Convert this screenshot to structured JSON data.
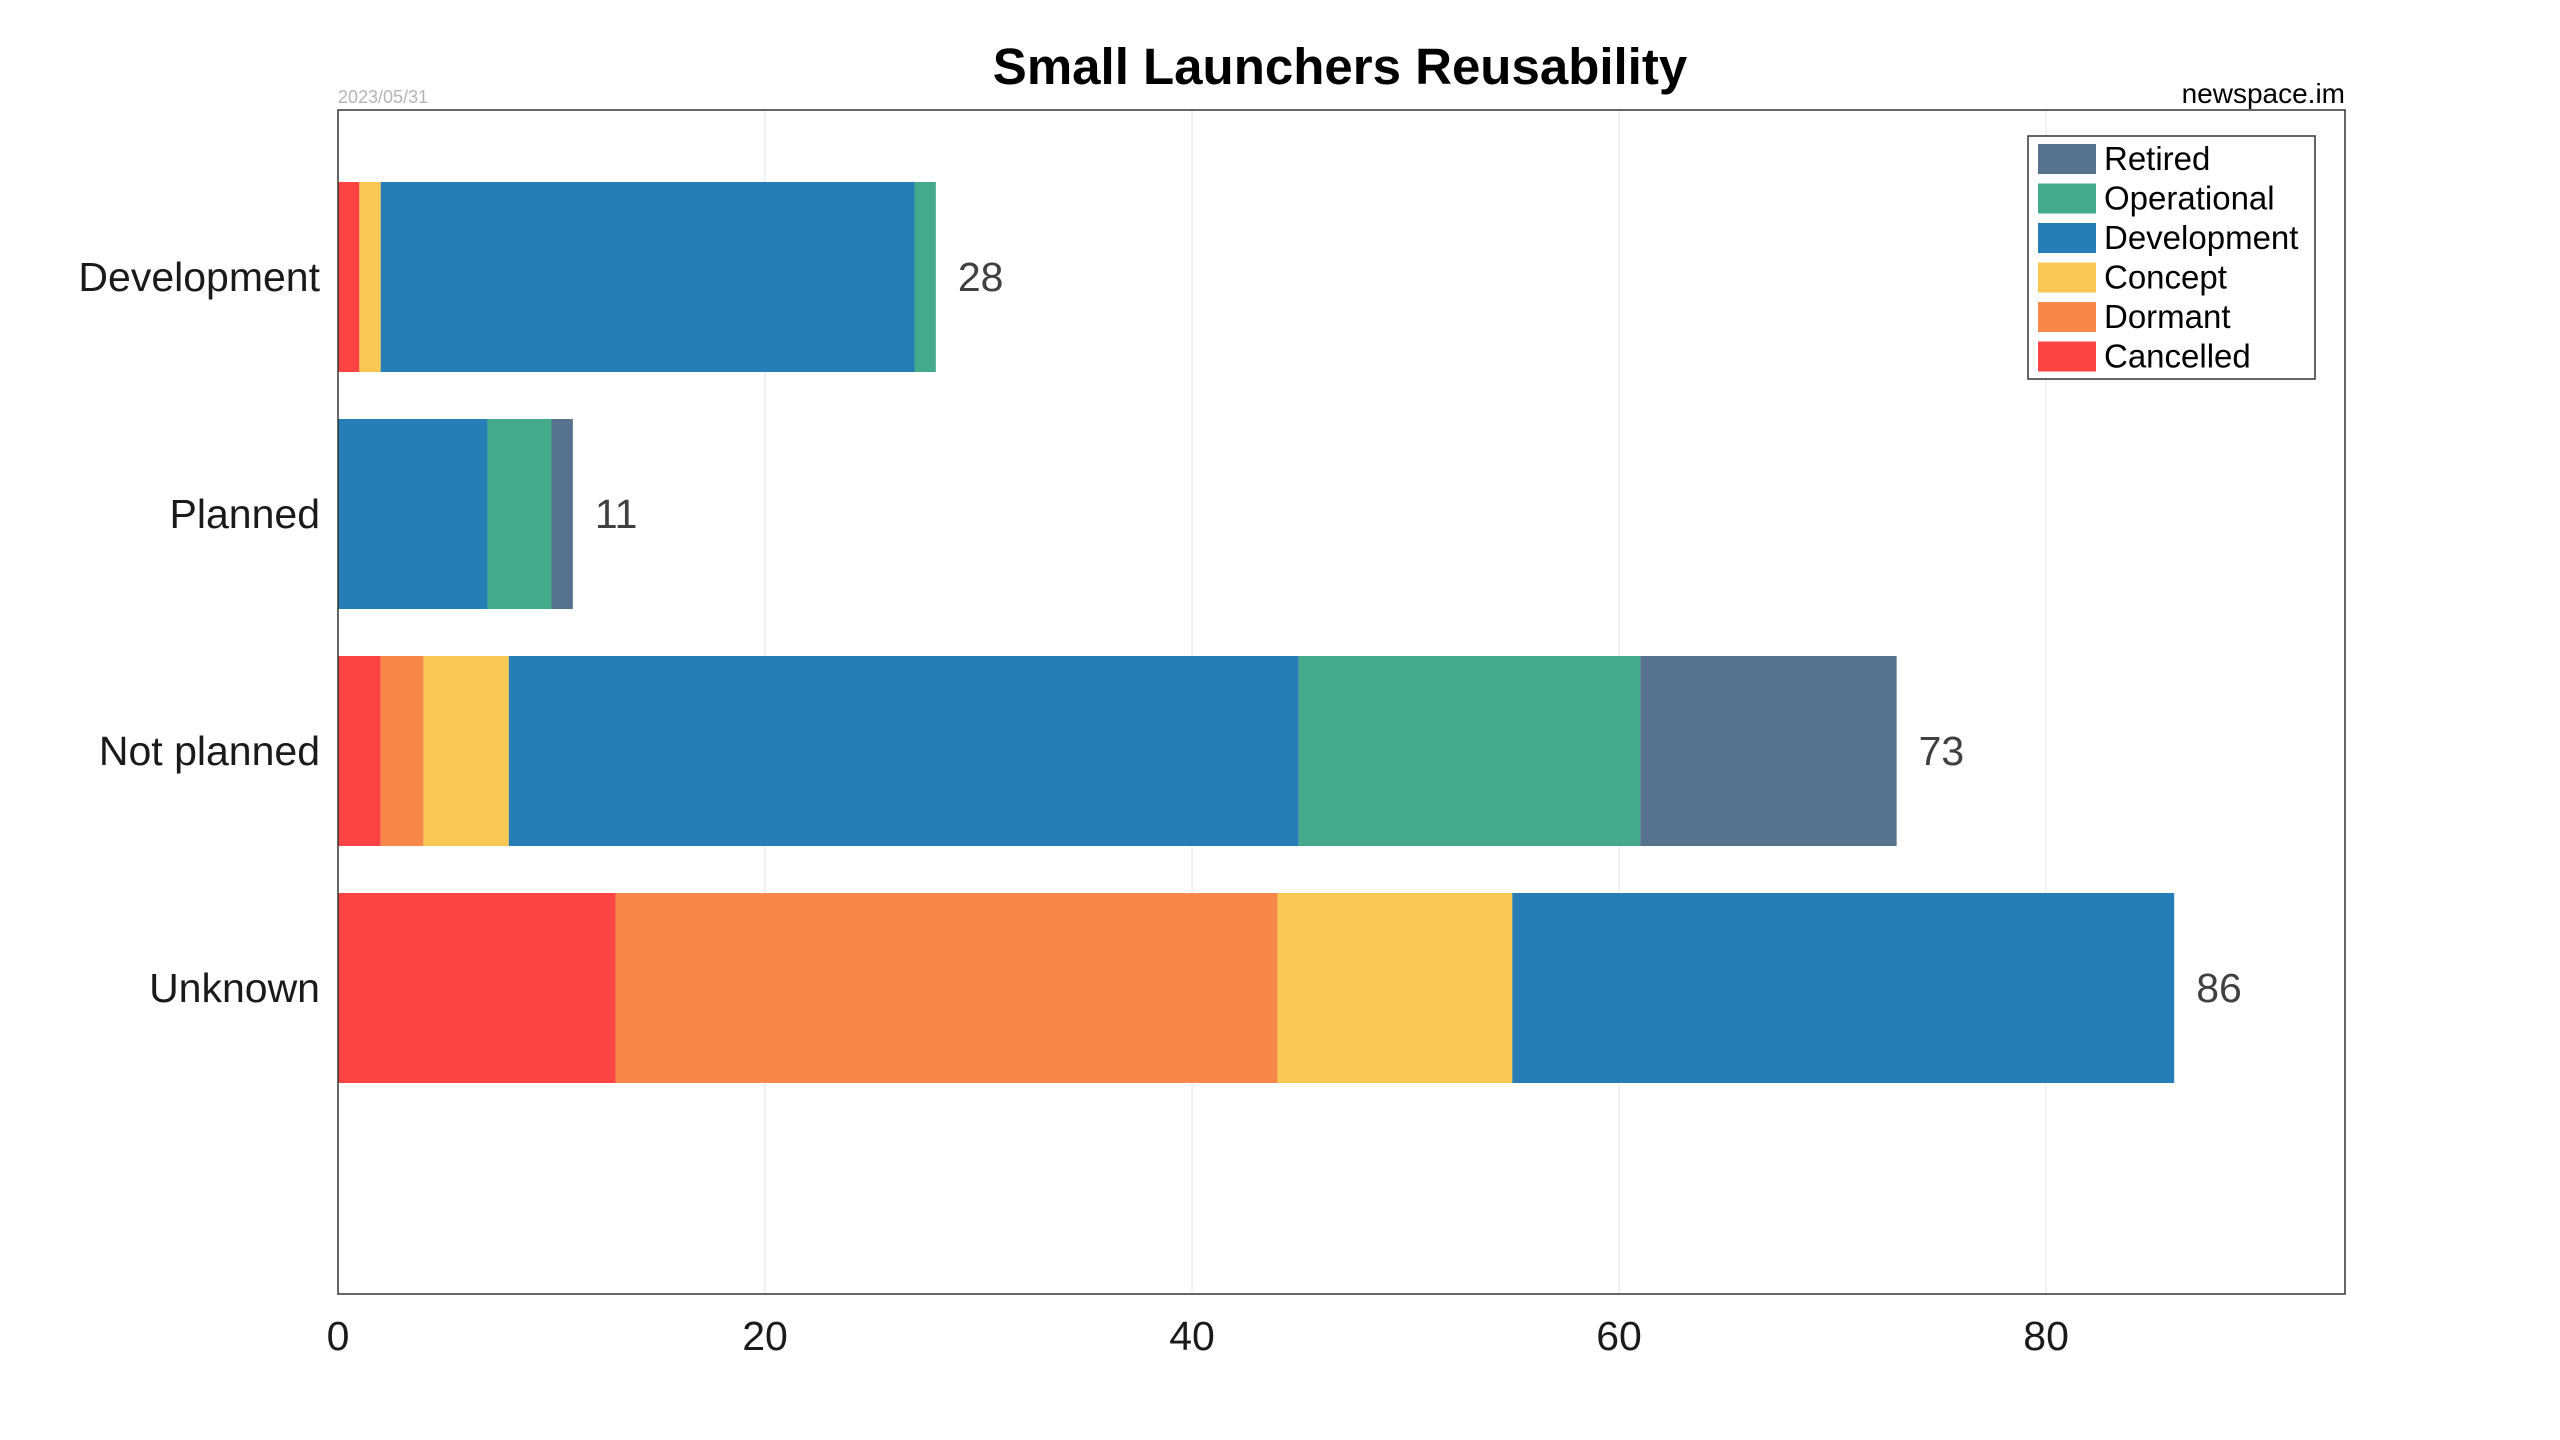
{
  "chart_data": {
    "type": "bar",
    "orientation": "horizontal",
    "stacked": true,
    "title": "Small Launchers Reusability",
    "date_note": "2023/05/31",
    "source_note": "newspace.im",
    "categories": [
      "Development",
      "Planned",
      "Not planned",
      "Unknown"
    ],
    "series": [
      {
        "name": "Cancelled",
        "color": "#fc4444",
        "values": [
          1,
          0,
          2,
          13
        ]
      },
      {
        "name": "Dormant",
        "color": "#f8874a",
        "values": [
          0,
          0,
          2,
          31
        ]
      },
      {
        "name": "Concept",
        "color": "#f9c754",
        "values": [
          1,
          0,
          4,
          11
        ]
      },
      {
        "name": "Development",
        "color": "#277db5",
        "values": [
          25,
          7,
          37,
          31
        ]
      },
      {
        "name": "Operational",
        "color": "#44aa8b",
        "values": [
          1,
          3,
          16,
          0
        ]
      },
      {
        "name": "Retired",
        "color": "#57728f",
        "values": [
          0,
          1,
          12,
          0
        ]
      }
    ],
    "totals": [
      "28",
      "11",
      "73",
      "86"
    ],
    "legend_order": [
      "Retired",
      "Operational",
      "Development",
      "Concept",
      "Dormant",
      "Cancelled"
    ],
    "xticks": [
      0,
      20,
      40,
      60,
      80
    ],
    "tick_labels": [
      "0",
      "20",
      "40",
      "60",
      "80"
    ],
    "xlim": [
      0,
      94
    ],
    "grid": "vertical",
    "legend_position": "top-right"
  }
}
